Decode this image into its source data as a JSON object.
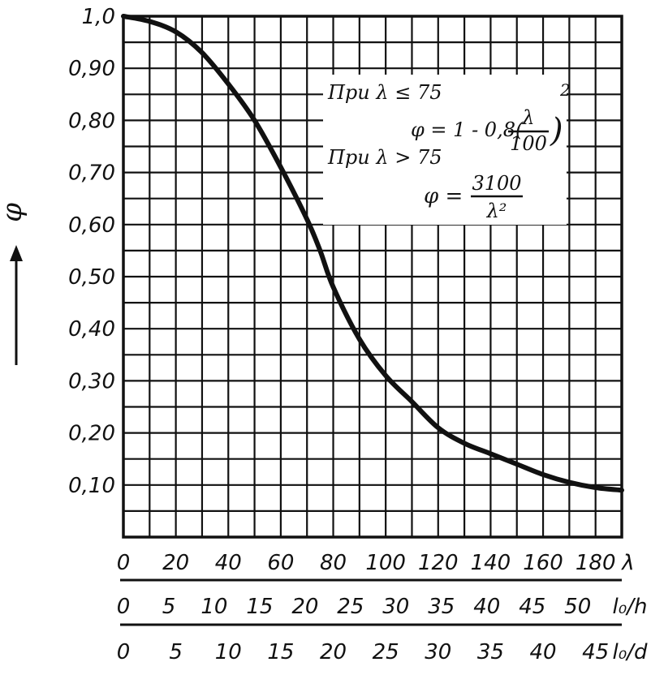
{
  "chart_data": {
    "type": "line",
    "ylabel": "φ",
    "ylim": [
      0,
      1.0
    ],
    "y_ticks": [
      "0,10",
      "0,20",
      "0,30",
      "0,40",
      "0,50",
      "0,60",
      "0,70",
      "0,80",
      "0,90",
      "1,0"
    ],
    "grid": true,
    "x_scales": [
      {
        "name": "λ",
        "range": [
          0,
          190
        ],
        "ticks": [
          "0",
          "20",
          "40",
          "60",
          "80",
          "100",
          "120",
          "140",
          "160",
          "180"
        ]
      },
      {
        "name": "l₀/h",
        "ticks": [
          "0",
          "5",
          "10",
          "15",
          "20",
          "25",
          "30",
          "35",
          "40",
          "45",
          "50"
        ]
      },
      {
        "name": "l₀/d",
        "ticks": [
          "0",
          "5",
          "10",
          "15",
          "20",
          "25",
          "30",
          "35",
          "40",
          "45"
        ]
      }
    ],
    "series": [
      {
        "x": [
          0,
          10,
          20,
          30,
          40,
          50,
          60,
          70,
          75,
          80,
          90,
          100,
          110,
          120,
          130,
          140,
          150,
          160,
          170,
          180,
          190
        ],
        "y": [
          1.0,
          0.99,
          0.97,
          0.93,
          0.87,
          0.8,
          0.71,
          0.61,
          0.55,
          0.48,
          0.38,
          0.31,
          0.26,
          0.21,
          0.18,
          0.16,
          0.14,
          0.12,
          0.105,
          0.095,
          0.09
        ]
      }
    ],
    "annotation": {
      "line1_prefix": "При λ ≤ 75",
      "formula1_left": "φ = 1 - 0,8(",
      "formula1_num": "λ",
      "formula1_den": "100",
      "formula1_right": ")",
      "formula1_exp": "2",
      "line2_prefix": "При λ > 75",
      "formula2_left": "φ =",
      "formula2_num": "3100",
      "formula2_den": "λ²"
    }
  }
}
